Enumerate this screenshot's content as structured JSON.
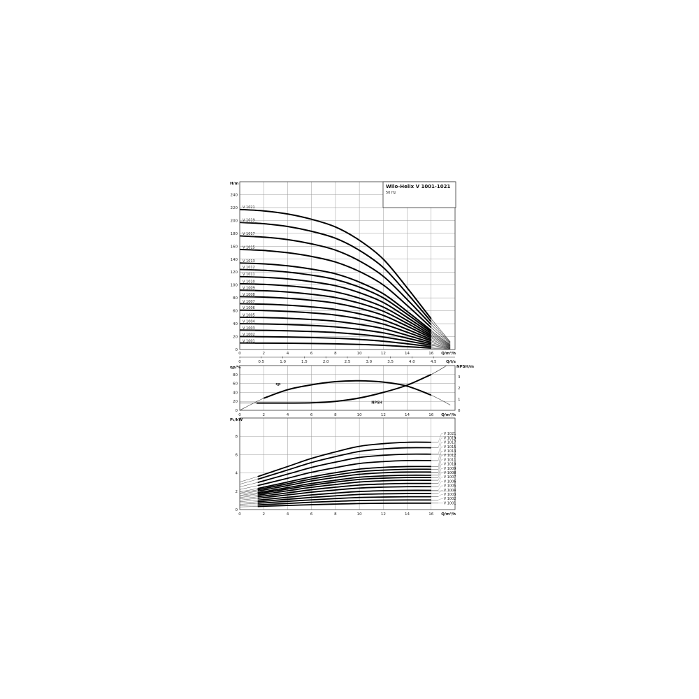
{
  "title": "Wilo-Helix V 1001-1021",
  "subtitle": "50 Hz",
  "chart_data": [
    {
      "type": "line",
      "ylabel": "H/m",
      "xlabel": "Q/m³/h",
      "xlabel2": "Q/l/s",
      "xlim": [
        0,
        18
      ],
      "ylim": [
        0,
        260
      ],
      "grid": true,
      "x_ticks": [
        "0",
        "2",
        "4",
        "6",
        "8",
        "10",
        "12",
        "14",
        "16"
      ],
      "x_ticks_values": [
        0,
        2,
        4,
        6,
        8,
        10,
        12,
        14,
        16
      ],
      "x2_ticks": [
        "0",
        "0.5",
        "1.0",
        "1.5",
        "2.0",
        "2.5",
        "3.0",
        "3.5",
        "4.0",
        "4.5"
      ],
      "x2_ticks_values": [
        0,
        0.5,
        1.0,
        1.5,
        2.0,
        2.5,
        3.0,
        3.5,
        4.0,
        4.5
      ],
      "y_ticks": [
        "0",
        "20",
        "40",
        "60",
        "80",
        "100",
        "120",
        "140",
        "160",
        "180",
        "200",
        "220",
        "240"
      ],
      "y_ticks_values": [
        0,
        20,
        40,
        60,
        80,
        100,
        120,
        140,
        160,
        180,
        200,
        220,
        240
      ],
      "x": [
        0,
        2,
        4,
        6,
        8,
        10,
        12,
        14,
        16,
        17.6
      ],
      "series": [
        {
          "name": "V 1001",
          "values": [
            10,
            9.9,
            9.7,
            9.3,
            8.8,
            7.8,
            6.5,
            4.4,
            2.2,
            0.6
          ]
        },
        {
          "name": "V 1002",
          "values": [
            20,
            19.8,
            19.4,
            18.6,
            17.5,
            15.6,
            12.9,
            8.8,
            4.4,
            1.1
          ]
        },
        {
          "name": "V 1003",
          "values": [
            30,
            29.7,
            29,
            27.9,
            26.3,
            23.4,
            19.4,
            13.2,
            6.6,
            1.7
          ]
        },
        {
          "name": "V 1004",
          "values": [
            40,
            39.6,
            38.7,
            37.2,
            35,
            31.2,
            25.8,
            17.6,
            8.8,
            2.2
          ]
        },
        {
          "name": "V 1005",
          "values": [
            50,
            49.5,
            48.4,
            46.5,
            43.8,
            39,
            32.3,
            22,
            11,
            2.8
          ]
        },
        {
          "name": "V 1006",
          "values": [
            61,
            60.4,
            59,
            56.7,
            53.4,
            47.6,
            39.3,
            26.8,
            13.4,
            3.4
          ]
        },
        {
          "name": "V 1007",
          "values": [
            71,
            70.3,
            68.7,
            66,
            62.1,
            55.4,
            45.8,
            31.2,
            15.6,
            3.9
          ]
        },
        {
          "name": "V 1008",
          "values": [
            82,
            81.2,
            79.4,
            76.3,
            71.8,
            64,
            52.9,
            36.1,
            18,
            4.5
          ]
        },
        {
          "name": "V 1009",
          "values": [
            92,
            91.1,
            89.1,
            85.6,
            80.5,
            71.8,
            59.3,
            40.5,
            20.2,
            5.1
          ]
        },
        {
          "name": "V 1010",
          "values": [
            102,
            101,
            98.7,
            94.9,
            89.3,
            79.6,
            65.8,
            44.9,
            22.4,
            5.6
          ]
        },
        {
          "name": "V 1011",
          "values": [
            113,
            111.9,
            109.4,
            105.1,
            98.9,
            88.1,
            72.9,
            49.7,
            24.9,
            6.2
          ]
        },
        {
          "name": "V 1012",
          "values": [
            124,
            122.8,
            120,
            115.3,
            108.5,
            96.7,
            80,
            54.6,
            27.3,
            6.8
          ]
        },
        {
          "name": "V 1013",
          "values": [
            134,
            132.7,
            129.7,
            124.6,
            117.3,
            104.5,
            86.4,
            59,
            29.5,
            7.4
          ]
        },
        {
          "name": "V 1015",
          "values": [
            155,
            153.5,
            150,
            144.2,
            135.6,
            120.9,
            100,
            68.2,
            34.1,
            8.5
          ]
        },
        {
          "name": "V 1017",
          "values": [
            176,
            174.2,
            170.4,
            163.7,
            154,
            137.3,
            113.5,
            77.4,
            38.7,
            9.7
          ]
        },
        {
          "name": "V 1019",
          "values": [
            197,
            195,
            190.7,
            183.2,
            172.4,
            153.7,
            127.1,
            86.7,
            43.3,
            10.8
          ]
        },
        {
          "name": "V 1021",
          "values": [
            217,
            214.8,
            210,
            201.8,
            189.9,
            169.3,
            140,
            95.5,
            47.7,
            11.9
          ]
        }
      ]
    },
    {
      "type": "line",
      "ylabel": "ηp/%",
      "y2label": "NPSH/m",
      "xlabel": "Q/m³/h",
      "xlim": [
        0,
        18
      ],
      "ylim": [
        0,
        100
      ],
      "y2lim": [
        0,
        4
      ],
      "grid": true,
      "x_ticks": [
        "0",
        "2",
        "4",
        "6",
        "8",
        "10",
        "12",
        "14",
        "16"
      ],
      "x_ticks_values": [
        0,
        2,
        4,
        6,
        8,
        10,
        12,
        14,
        16
      ],
      "y_ticks": [
        "0",
        "20",
        "40",
        "60",
        "80"
      ],
      "y_ticks_values": [
        0,
        20,
        40,
        60,
        80
      ],
      "y2_ticks": [
        "0",
        "1",
        "2",
        "3"
      ],
      "y2_ticks_values": [
        0,
        1,
        2,
        3
      ],
      "series": [
        {
          "name": "ηp",
          "axis": "left",
          "x": [
            0,
            2,
            4,
            6,
            8,
            10,
            12,
            14,
            16,
            17.6
          ],
          "values": [
            0,
            27,
            46,
            57,
            64,
            66,
            63,
            54,
            34,
            12
          ]
        },
        {
          "name": "NPSH",
          "axis": "right",
          "x": [
            0,
            1.4,
            4,
            6,
            8,
            10,
            12,
            14,
            16,
            17.3
          ],
          "values": [
            0.65,
            0.65,
            0.65,
            0.67,
            0.8,
            1.1,
            1.6,
            2.25,
            3.2,
            4
          ]
        }
      ]
    },
    {
      "type": "line",
      "ylabel": "P₂/kW",
      "xlabel": "Q/m³/h",
      "xlim": [
        0,
        18
      ],
      "ylim": [
        0,
        10
      ],
      "grid": true,
      "x_ticks": [
        "0",
        "2",
        "4",
        "6",
        "8",
        "10",
        "12",
        "14",
        "16"
      ],
      "x_ticks_values": [
        0,
        2,
        4,
        6,
        8,
        10,
        12,
        14,
        16
      ],
      "y_ticks": [
        "0",
        "2",
        "4",
        "6",
        "8"
      ],
      "y_ticks_values": [
        0,
        2,
        4,
        6,
        8
      ],
      "x": [
        0,
        1.5,
        4,
        6,
        8,
        10,
        12,
        14,
        16
      ],
      "series": [
        {
          "name": "V 1001",
          "values": [
            0.29,
            0.34,
            0.45,
            0.53,
            0.6,
            0.66,
            0.69,
            0.7,
            0.7
          ]
        },
        {
          "name": "V 1002",
          "values": [
            0.43,
            0.51,
            0.67,
            0.8,
            0.9,
            0.99,
            1.03,
            1.05,
            1.05
          ]
        },
        {
          "name": "V 1003",
          "values": [
            0.57,
            0.69,
            0.9,
            1.06,
            1.2,
            1.32,
            1.37,
            1.4,
            1.4
          ]
        },
        {
          "name": "V 1004",
          "values": [
            0.72,
            0.86,
            1.12,
            1.33,
            1.5,
            1.65,
            1.72,
            1.75,
            1.75
          ]
        },
        {
          "name": "V 1005",
          "values": [
            0.86,
            1.03,
            1.34,
            1.6,
            1.8,
            1.97,
            2.06,
            2.1,
            2.1
          ]
        },
        {
          "name": "V 1006",
          "values": [
            1.03,
            1.23,
            1.6,
            1.9,
            2.14,
            2.35,
            2.45,
            2.5,
            2.5
          ]
        },
        {
          "name": "V 1007",
          "values": [
            1.17,
            1.4,
            1.82,
            2.17,
            2.44,
            2.68,
            2.79,
            2.85,
            2.85
          ]
        },
        {
          "name": "V 1008",
          "values": [
            1.31,
            1.57,
            2.05,
            2.43,
            2.74,
            3.01,
            3.14,
            3.2,
            3.2
          ]
        },
        {
          "name": "V 1009",
          "values": [
            1.44,
            1.72,
            2.24,
            2.66,
            3,
            3.29,
            3.43,
            3.5,
            3.5
          ]
        },
        {
          "name": "V 1010",
          "values": [
            1.54,
            1.84,
            2.4,
            2.85,
            3.21,
            3.53,
            3.68,
            3.75,
            3.75
          ]
        },
        {
          "name": "V 1011",
          "values": [
            1.68,
            2.01,
            2.62,
            3.12,
            3.51,
            3.85,
            4.02,
            4.1,
            4.1
          ]
        },
        {
          "name": "V 1012",
          "values": [
            1.8,
            2.16,
            2.82,
            3.34,
            3.77,
            4.14,
            4.31,
            4.4,
            4.4
          ]
        },
        {
          "name": "V 1013",
          "values": [
            1.93,
            2.3,
            3.01,
            3.57,
            4.03,
            4.42,
            4.61,
            4.7,
            4.7
          ]
        },
        {
          "name": "V 1015",
          "values": [
            2.19,
            2.62,
            3.42,
            4.07,
            4.58,
            5.03,
            5.24,
            5.35,
            5.35
          ]
        },
        {
          "name": "V 1017",
          "values": [
            2.48,
            2.96,
            3.87,
            4.6,
            5.18,
            5.69,
            5.93,
            6.05,
            6.05
          ]
        },
        {
          "name": "V 1019",
          "values": [
            2.77,
            3.31,
            4.32,
            5.13,
            5.78,
            6.35,
            6.62,
            6.75,
            6.75
          ]
        },
        {
          "name": "V 1021",
          "values": [
            3.01,
            3.6,
            4.7,
            5.59,
            6.3,
            6.91,
            7.2,
            7.35,
            7.35
          ]
        }
      ]
    }
  ]
}
